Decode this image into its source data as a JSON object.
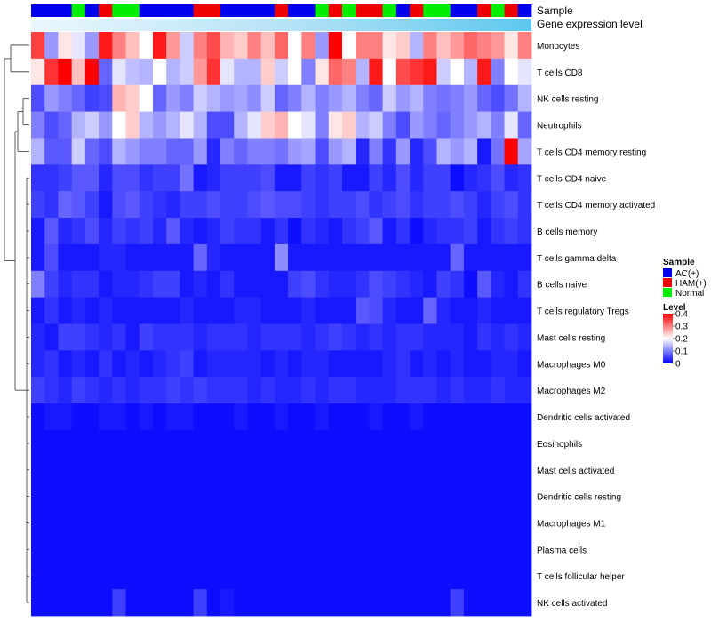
{
  "chart_data": {
    "type": "heatmap",
    "title": "",
    "annotation_labels": [
      "Sample",
      "Gene expression level"
    ],
    "rows": [
      "Monocytes",
      "T cells CD8",
      "NK cells resting",
      "Neutrophils",
      "T cells CD4 memory resting",
      "T cells CD4 naive",
      "T cells CD4 memory activated",
      "B cells memory",
      "T cells gamma delta",
      "B cells naive",
      "T cells regulatory  Tregs",
      "Mast cells resting",
      "Macrophages M0",
      "Macrophages M2",
      "Dendritic cells activated",
      "Eosinophils",
      "Mast cells activated",
      "Dendritic cells resting",
      "Macrophages M1",
      "Plasma cells",
      "T cells follicular helper",
      "NK cells activated"
    ],
    "sample_groups": [
      "A",
      "A",
      "A",
      "N",
      "A",
      "H",
      "N",
      "N",
      "A",
      "A",
      "A",
      "A",
      "H",
      "H",
      "A",
      "A",
      "A",
      "A",
      "H",
      "A",
      "A",
      "N",
      "H",
      "N",
      "H",
      "H",
      "N",
      "A",
      "H",
      "N",
      "N",
      "A",
      "A",
      "H",
      "N",
      "H",
      "A"
    ],
    "values": [
      [
        0.35,
        0.12,
        0.22,
        0.18,
        0.12,
        0.38,
        0.3,
        0.25,
        0.2,
        0.38,
        0.28,
        0.16,
        0.3,
        0.34,
        0.26,
        0.24,
        0.3,
        0.25,
        0.32,
        0.2,
        0.3,
        0.12,
        0.4,
        0.2,
        0.3,
        0.3,
        0.22,
        0.24,
        0.14,
        0.3,
        0.25,
        0.28,
        0.32,
        0.3,
        0.28,
        0.22,
        0.3
      ],
      [
        0.22,
        0.36,
        0.42,
        0.25,
        0.4,
        0.08,
        0.18,
        0.15,
        0.14,
        0.2,
        0.14,
        0.16,
        0.28,
        0.36,
        0.18,
        0.14,
        0.14,
        0.24,
        0.16,
        0.2,
        0.1,
        0.22,
        0.32,
        0.3,
        0.14,
        0.38,
        0.2,
        0.34,
        0.36,
        0.38,
        0.16,
        0.2,
        0.14,
        0.38,
        0.1,
        0.2,
        0.18
      ],
      [
        0.06,
        0.12,
        0.1,
        0.08,
        0.05,
        0.06,
        0.26,
        0.24,
        0.2,
        0.08,
        0.12,
        0.1,
        0.16,
        0.14,
        0.12,
        0.13,
        0.11,
        0.16,
        0.08,
        0.1,
        0.14,
        0.1,
        0.12,
        0.14,
        0.1,
        0.08,
        0.16,
        0.12,
        0.14,
        0.1,
        0.09,
        0.1,
        0.12,
        0.08,
        0.06,
        0.09,
        0.14
      ],
      [
        0.1,
        0.06,
        0.08,
        0.14,
        0.16,
        0.12,
        0.2,
        0.24,
        0.14,
        0.12,
        0.14,
        0.18,
        0.14,
        0.06,
        0.06,
        0.14,
        0.18,
        0.24,
        0.26,
        0.2,
        0.18,
        0.1,
        0.22,
        0.24,
        0.14,
        0.16,
        0.1,
        0.06,
        0.12,
        0.1,
        0.08,
        0.1,
        0.12,
        0.14,
        0.1,
        0.18,
        0.08
      ],
      [
        0.14,
        0.07,
        0.07,
        0.16,
        0.08,
        0.06,
        0.14,
        0.12,
        0.1,
        0.1,
        0.08,
        0.08,
        0.12,
        0.03,
        0.1,
        0.08,
        0.1,
        0.1,
        0.09,
        0.12,
        0.13,
        0.06,
        0.12,
        0.14,
        0.03,
        0.1,
        0.04,
        0.12,
        0.03,
        0.06,
        0.14,
        0.12,
        0.14,
        0.02,
        0.09,
        0.4,
        0.13
      ],
      [
        0.04,
        0.04,
        0.05,
        0.07,
        0.07,
        0.03,
        0.06,
        0.06,
        0.04,
        0.05,
        0.05,
        0.09,
        0.02,
        0.03,
        0.05,
        0.05,
        0.05,
        0.06,
        0.02,
        0.02,
        0.05,
        0.04,
        0.05,
        0.02,
        0.02,
        0.05,
        0.03,
        0.06,
        0.03,
        0.05,
        0.05,
        0.01,
        0.03,
        0.04,
        0.06,
        0.03,
        0.04
      ],
      [
        0.05,
        0.04,
        0.08,
        0.07,
        0.05,
        0.02,
        0.06,
        0.07,
        0.05,
        0.04,
        0.03,
        0.05,
        0.05,
        0.06,
        0.05,
        0.05,
        0.06,
        0.07,
        0.06,
        0.06,
        0.05,
        0.04,
        0.05,
        0.05,
        0.06,
        0.04,
        0.05,
        0.06,
        0.04,
        0.05,
        0.05,
        0.06,
        0.05,
        0.03,
        0.05,
        0.06,
        0.04
      ],
      [
        0.02,
        0.07,
        0.03,
        0.04,
        0.06,
        0.03,
        0.05,
        0.04,
        0.05,
        0.03,
        0.07,
        0.03,
        0.02,
        0.03,
        0.05,
        0.04,
        0.04,
        0.02,
        0.04,
        0.01,
        0.04,
        0.03,
        0.02,
        0.04,
        0.05,
        0.07,
        0.02,
        0.04,
        0.01,
        0.03,
        0.04,
        0.04,
        0.05,
        0.02,
        0.04,
        0.05,
        0.04
      ],
      [
        0.02,
        0.06,
        0.02,
        0.02,
        0.02,
        0.03,
        0.03,
        0.02,
        0.02,
        0.02,
        0.02,
        0.02,
        0.08,
        0.03,
        0.02,
        0.02,
        0.02,
        0.02,
        0.11,
        0.02,
        0.02,
        0.02,
        0.02,
        0.02,
        0.02,
        0.02,
        0.02,
        0.02,
        0.02,
        0.02,
        0.02,
        0.08,
        0.02,
        0.02,
        0.02,
        0.02,
        0.02
      ],
      [
        0.1,
        0.05,
        0.03,
        0.04,
        0.04,
        0.02,
        0.03,
        0.03,
        0.04,
        0.05,
        0.05,
        0.02,
        0.03,
        0.02,
        0.04,
        0.02,
        0.02,
        0.02,
        0.02,
        0.05,
        0.06,
        0.04,
        0.03,
        0.03,
        0.04,
        0.06,
        0.05,
        0.04,
        0.03,
        0.02,
        0.05,
        0.04,
        0.01,
        0.07,
        0.03,
        0.02,
        0.04
      ],
      [
        0.02,
        0.04,
        0.02,
        0.03,
        0.02,
        0.03,
        0.02,
        0.02,
        0.02,
        0.02,
        0.02,
        0.03,
        0.02,
        0.02,
        0.02,
        0.03,
        0.03,
        0.02,
        0.02,
        0.02,
        0.03,
        0.02,
        0.02,
        0.02,
        0.07,
        0.06,
        0.03,
        0.02,
        0.02,
        0.08,
        0.03,
        0.02,
        0.02,
        0.03,
        0.02,
        0.02,
        0.02
      ],
      [
        0.03,
        0.02,
        0.05,
        0.05,
        0.04,
        0.03,
        0.04,
        0.02,
        0.05,
        0.04,
        0.04,
        0.04,
        0.03,
        0.04,
        0.04,
        0.04,
        0.03,
        0.04,
        0.04,
        0.04,
        0.03,
        0.04,
        0.05,
        0.04,
        0.03,
        0.04,
        0.03,
        0.04,
        0.04,
        0.03,
        0.03,
        0.03,
        0.02,
        0.04,
        0.03,
        0.04,
        0.03
      ],
      [
        0.03,
        0.04,
        0.02,
        0.03,
        0.02,
        0.04,
        0.02,
        0.03,
        0.02,
        0.03,
        0.04,
        0.05,
        0.02,
        0.03,
        0.03,
        0.03,
        0.03,
        0.02,
        0.03,
        0.02,
        0.03,
        0.03,
        0.02,
        0.02,
        0.02,
        0.02,
        0.03,
        0.04,
        0.02,
        0.03,
        0.02,
        0.03,
        0.02,
        0.02,
        0.03,
        0.03,
        0.02
      ],
      [
        0.05,
        0.04,
        0.03,
        0.05,
        0.04,
        0.03,
        0.04,
        0.03,
        0.04,
        0.04,
        0.05,
        0.04,
        0.05,
        0.04,
        0.04,
        0.04,
        0.03,
        0.04,
        0.03,
        0.03,
        0.04,
        0.03,
        0.04,
        0.04,
        0.03,
        0.03,
        0.03,
        0.04,
        0.04,
        0.04,
        0.03,
        0.04,
        0.03,
        0.03,
        0.04,
        0.03,
        0.03
      ],
      [
        0.01,
        0.02,
        0.02,
        0.01,
        0.01,
        0.02,
        0.02,
        0.01,
        0.02,
        0.01,
        0.02,
        0.02,
        0.01,
        0.01,
        0.01,
        0.02,
        0.01,
        0.01,
        0.02,
        0.01,
        0.01,
        0.02,
        0.01,
        0.01,
        0.01,
        0.02,
        0.01,
        0.01,
        0.02,
        0.01,
        0.01,
        0.01,
        0.01,
        0.01,
        0.01,
        0.01,
        0.01
      ],
      [
        0.01,
        0.01,
        0.01,
        0.01,
        0.01,
        0.01,
        0.01,
        0.01,
        0.01,
        0.01,
        0.01,
        0.01,
        0.01,
        0.01,
        0.01,
        0.01,
        0.01,
        0.01,
        0.01,
        0.01,
        0.01,
        0.01,
        0.01,
        0.01,
        0.01,
        0.01,
        0.01,
        0.01,
        0.01,
        0.01,
        0.01,
        0.01,
        0.01,
        0.01,
        0.01,
        0.01,
        0.01
      ],
      [
        0.01,
        0.01,
        0.01,
        0.01,
        0.01,
        0.01,
        0.01,
        0.01,
        0.01,
        0.01,
        0.01,
        0.01,
        0.01,
        0.01,
        0.01,
        0.01,
        0.01,
        0.01,
        0.01,
        0.01,
        0.01,
        0.01,
        0.01,
        0.01,
        0.01,
        0.01,
        0.01,
        0.01,
        0.01,
        0.01,
        0.01,
        0.01,
        0.01,
        0.01,
        0.01,
        0.01,
        0.01
      ],
      [
        0.01,
        0.01,
        0.01,
        0.01,
        0.01,
        0.01,
        0.01,
        0.01,
        0.01,
        0.01,
        0.01,
        0.01,
        0.01,
        0.01,
        0.01,
        0.01,
        0.01,
        0.01,
        0.01,
        0.01,
        0.01,
        0.01,
        0.01,
        0.01,
        0.01,
        0.01,
        0.01,
        0.01,
        0.01,
        0.01,
        0.01,
        0.01,
        0.01,
        0.01,
        0.01,
        0.01,
        0.01
      ],
      [
        0.01,
        0.01,
        0.01,
        0.01,
        0.01,
        0.01,
        0.01,
        0.01,
        0.01,
        0.01,
        0.01,
        0.01,
        0.01,
        0.01,
        0.01,
        0.01,
        0.01,
        0.01,
        0.01,
        0.01,
        0.01,
        0.01,
        0.01,
        0.01,
        0.01,
        0.01,
        0.01,
        0.01,
        0.01,
        0.01,
        0.01,
        0.01,
        0.01,
        0.01,
        0.01,
        0.01,
        0.01
      ],
      [
        0.01,
        0.01,
        0.01,
        0.01,
        0.01,
        0.01,
        0.01,
        0.01,
        0.01,
        0.01,
        0.01,
        0.01,
        0.01,
        0.01,
        0.01,
        0.01,
        0.01,
        0.01,
        0.01,
        0.01,
        0.01,
        0.01,
        0.01,
        0.01,
        0.01,
        0.01,
        0.01,
        0.01,
        0.01,
        0.01,
        0.01,
        0.01,
        0.01,
        0.01,
        0.01,
        0.01,
        0.01
      ],
      [
        0.01,
        0.01,
        0.01,
        0.01,
        0.01,
        0.01,
        0.01,
        0.01,
        0.01,
        0.01,
        0.01,
        0.01,
        0.01,
        0.01,
        0.01,
        0.01,
        0.01,
        0.01,
        0.01,
        0.01,
        0.01,
        0.01,
        0.01,
        0.01,
        0.01,
        0.01,
        0.01,
        0.01,
        0.01,
        0.01,
        0.01,
        0.01,
        0.01,
        0.01,
        0.01,
        0.01,
        0.01
      ],
      [
        0.01,
        0.01,
        0.01,
        0.01,
        0.01,
        0.01,
        0.05,
        0.01,
        0.01,
        0.01,
        0.01,
        0.01,
        0.05,
        0.01,
        0.02,
        0.01,
        0.01,
        0.01,
        0.01,
        0.01,
        0.01,
        0.01,
        0.01,
        0.01,
        0.01,
        0.01,
        0.01,
        0.01,
        0.01,
        0.01,
        0.01,
        0.05,
        0.01,
        0.01,
        0.01,
        0.01,
        0.01
      ]
    ],
    "legend": {
      "sample_title": "Sample",
      "sample_items": [
        {
          "key": "A",
          "label": "AC(+)",
          "color": "#0000ee"
        },
        {
          "key": "H",
          "label": "HAM(+)",
          "color": "#ee0000"
        },
        {
          "key": "N",
          "label": "Normal",
          "color": "#00ee00"
        }
      ],
      "level_title": "Level",
      "level_ticks": [
        0.4,
        0.3,
        0.2,
        0.1,
        0
      ],
      "level_range": [
        0,
        0.4
      ],
      "placement": "right"
    },
    "colors": {
      "low": "#0000ff",
      "mid": "#ffffff",
      "high": "#ff0000",
      "gene_expression_bar": "#5ec8ee"
    }
  }
}
